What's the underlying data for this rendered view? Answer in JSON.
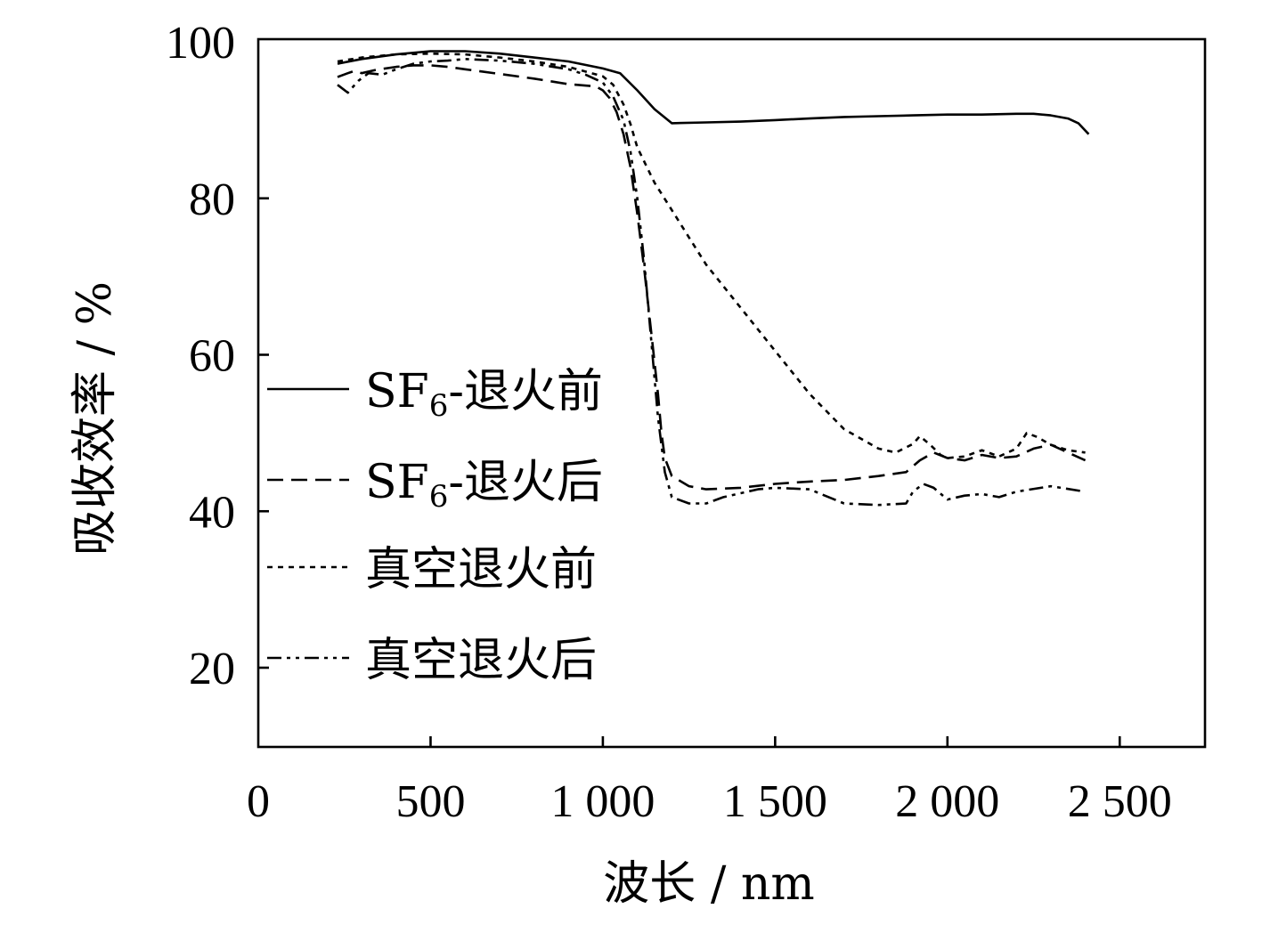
{
  "chart_data": {
    "type": "line",
    "xlabel": "波长 / nm",
    "ylabel": "吸收效率 / %",
    "xlim": [
      0,
      2750
    ],
    "ylim": [
      10,
      100
    ],
    "xticks": [
      {
        "value": 0,
        "label": "0"
      },
      {
        "value": 500,
        "label": "500"
      },
      {
        "value": 1000,
        "label": "1 000"
      },
      {
        "value": 1500,
        "label": "1 500"
      },
      {
        "value": 2000,
        "label": "2 000"
      },
      {
        "value": 2500,
        "label": "2 500"
      }
    ],
    "yticks": [
      {
        "value": 20,
        "label": "20"
      },
      {
        "value": 40,
        "label": "40"
      },
      {
        "value": 60,
        "label": "60"
      },
      {
        "value": 80,
        "label": "80"
      },
      {
        "value": 100,
        "label": "100"
      }
    ],
    "grid": false,
    "legend_position": "left-center",
    "series": [
      {
        "name_main": "SF",
        "name_sub": "6",
        "name_rest": "-退火前",
        "dash": "solid",
        "x": [
          230,
          300,
          400,
          500,
          600,
          700,
          800,
          900,
          1000,
          1050,
          1100,
          1150,
          1200,
          1300,
          1400,
          1500,
          1600,
          1700,
          1800,
          1900,
          2000,
          2100,
          2200,
          2250,
          2300,
          2350,
          2380,
          2410
        ],
        "y": [
          97.2,
          97.8,
          98.4,
          98.8,
          98.8,
          98.5,
          98.0,
          97.5,
          96.6,
          96.0,
          93.8,
          91.4,
          89.6,
          89.7,
          89.8,
          90.0,
          90.2,
          90.4,
          90.5,
          90.6,
          90.7,
          90.7,
          90.8,
          90.8,
          90.6,
          90.2,
          89.6,
          88.2
        ]
      },
      {
        "name_main": "SF",
        "name_sub": "6",
        "name_rest": "-退火后",
        "dash": "dashed",
        "x": [
          230,
          260,
          280,
          300,
          340,
          400,
          450,
          500,
          550,
          600,
          700,
          800,
          900,
          980,
          1000,
          1020,
          1040,
          1060,
          1080,
          1100,
          1120,
          1140,
          1160,
          1170,
          1180,
          1200,
          1250,
          1300,
          1400,
          1500,
          1600,
          1700,
          1800,
          1880,
          1920,
          1960,
          2000,
          2050,
          2100,
          2150,
          2200,
          2250,
          2300,
          2350,
          2400
        ],
        "y": [
          95.5,
          96.0,
          96.3,
          96.0,
          96.4,
          96.8,
          97.0,
          97.0,
          96.8,
          96.5,
          95.9,
          95.3,
          94.6,
          94.3,
          93.8,
          92.8,
          91.0,
          88.2,
          84.0,
          78.0,
          71.0,
          63.0,
          55.0,
          50.0,
          46.8,
          44.5,
          43.2,
          42.8,
          43.0,
          43.5,
          43.8,
          44.0,
          44.5,
          45.0,
          46.5,
          47.5,
          46.8,
          46.5,
          47.2,
          46.8,
          47.0,
          48.0,
          48.5,
          47.5,
          46.5
        ]
      },
      {
        "name_main": "真空退火前",
        "name_sub": "",
        "name_rest": "",
        "dash": "dotted",
        "x": [
          230,
          300,
          400,
          500,
          600,
          700,
          800,
          900,
          1000,
          1030,
          1060,
          1080,
          1100,
          1150,
          1200,
          1250,
          1300,
          1400,
          1500,
          1600,
          1700,
          1800,
          1850,
          1900,
          1920,
          1950,
          1980,
          2000,
          2050,
          2100,
          2150,
          2200,
          2230,
          2260,
          2300,
          2350,
          2400
        ],
        "y": [
          97.5,
          98.0,
          98.4,
          98.5,
          98.4,
          98.0,
          97.5,
          96.8,
          95.6,
          94.5,
          92.0,
          89.5,
          86.5,
          82.0,
          78.5,
          75.0,
          71.5,
          66.0,
          60.5,
          55.0,
          50.5,
          48.0,
          47.5,
          48.6,
          49.6,
          48.5,
          47.2,
          46.8,
          47.0,
          47.8,
          47.0,
          48.0,
          50.0,
          49.5,
          48.5,
          47.8,
          47.5
        ]
      },
      {
        "name_main": "真空退火后",
        "name_sub": "",
        "name_rest": "",
        "dash": "dashdotdot",
        "x": [
          230,
          260,
          290,
          320,
          360,
          400,
          450,
          500,
          550,
          600,
          700,
          800,
          900,
          950,
          1000,
          1030,
          1060,
          1080,
          1100,
          1120,
          1140,
          1160,
          1180,
          1200,
          1250,
          1300,
          1350,
          1400,
          1450,
          1500,
          1600,
          1700,
          1800,
          1880,
          1900,
          1930,
          1960,
          2000,
          2050,
          2100,
          2150,
          2200,
          2300,
          2400
        ],
        "y": [
          94.5,
          93.5,
          95.0,
          96.0,
          95.8,
          96.5,
          97.2,
          97.5,
          97.6,
          97.8,
          97.6,
          97.2,
          96.5,
          95.8,
          94.8,
          93.0,
          90.0,
          86.0,
          80.0,
          72.0,
          62.0,
          52.0,
          45.0,
          41.8,
          41.0,
          41.0,
          41.8,
          42.3,
          42.8,
          43.0,
          42.8,
          41.0,
          40.8,
          41.0,
          42.5,
          43.5,
          43.0,
          41.5,
          42.0,
          42.2,
          41.8,
          42.5,
          43.2,
          42.5
        ]
      }
    ]
  }
}
